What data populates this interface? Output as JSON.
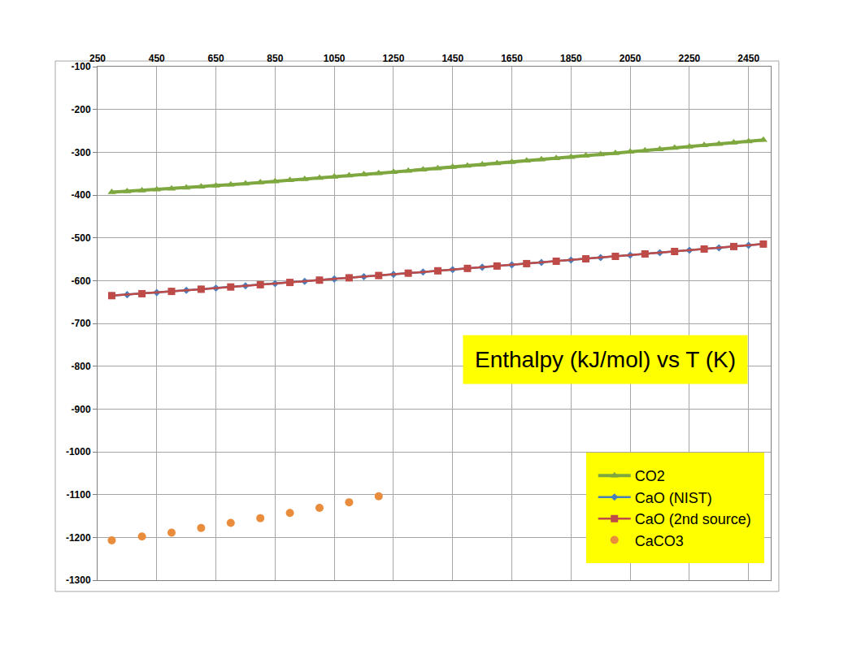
{
  "chart_data": {
    "type": "scatter",
    "title": "Enthalpy (kJ/mol) vs T (K)",
    "xlim": [
      250,
      2525
    ],
    "xticks": [
      250,
      450,
      650,
      850,
      1050,
      1250,
      1450,
      1650,
      1850,
      2050,
      2250,
      2450
    ],
    "ylim": [
      -1300,
      -100
    ],
    "yticks": [
      -1300,
      -1200,
      -1100,
      -1000,
      -900,
      -800,
      -700,
      -600,
      -500,
      -400,
      -300,
      -200,
      -100
    ],
    "grid": true,
    "legend": "lower right",
    "series": [
      {
        "name": "CO2",
        "color": "#7ea83f",
        "marker": "triangle-up",
        "line_style": "solid",
        "x": [
          298,
          350,
          400,
          450,
          500,
          550,
          600,
          650,
          700,
          750,
          800,
          850,
          900,
          950,
          1000,
          1050,
          1100,
          1150,
          1200,
          1250,
          1300,
          1350,
          1400,
          1450,
          1500,
          1550,
          1600,
          1650,
          1700,
          1750,
          1800,
          1850,
          1900,
          1950,
          2000,
          2050,
          2100,
          2150,
          2200,
          2250,
          2300,
          2350,
          2400,
          2450,
          2500
        ],
        "values": [
          -393.5,
          -391.4,
          -389.5,
          -387.4,
          -385.2,
          -382.9,
          -380.6,
          -378.2,
          -375.7,
          -373.2,
          -370.7,
          -368.1,
          -365.5,
          -362.8,
          -360.1,
          -357.4,
          -354.6,
          -351.8,
          -349.0,
          -346.2,
          -343.4,
          -340.5,
          -337.6,
          -334.7,
          -331.8,
          -328.9,
          -325.9,
          -322.9,
          -320.0,
          -317.0,
          -314.1,
          -311.1,
          -308.1,
          -305.1,
          -302.1,
          -299.0,
          -296.0,
          -293.0,
          -289.9,
          -286.9,
          -283.8,
          -280.7,
          -277.7,
          -274.6,
          -271.5
        ]
      },
      {
        "name": "CaO (NIST)",
        "color": "#4a7ebb",
        "marker": "diamond",
        "line_style": "solid",
        "x": [
          298,
          350,
          400,
          450,
          500,
          550,
          600,
          650,
          700,
          750,
          800,
          850,
          900,
          950,
          1000,
          1050,
          1100,
          1150,
          1200,
          1250,
          1300,
          1350,
          1400,
          1450,
          1500,
          1550,
          1600,
          1650,
          1700,
          1750,
          1800,
          1850,
          1900,
          1950,
          2000,
          2050,
          2100,
          2150,
          2200,
          2250,
          2300,
          2350,
          2400,
          2450,
          2500
        ],
        "values": [
          -635.1,
          -632.9,
          -630.6,
          -628.0,
          -625.2,
          -622.7,
          -620.1,
          -617.5,
          -614.9,
          -612.3,
          -609.6,
          -607.0,
          -604.3,
          -601.6,
          -598.9,
          -596.2,
          -593.5,
          -590.8,
          -588.1,
          -585.4,
          -582.6,
          -579.9,
          -577.1,
          -574.3,
          -571.5,
          -568.7,
          -565.9,
          -563.1,
          -560.3,
          -557.5,
          -554.7,
          -551.9,
          -549.1,
          -546.3,
          -543.4,
          -540.6,
          -537.7,
          -534.9,
          -532.0,
          -529.1,
          -526.2,
          -523.3,
          -520.4,
          -517.5,
          -514.6
        ]
      },
      {
        "name": "CaO (2nd source)",
        "color": "#be4b48",
        "marker": "square",
        "line_style": "solid",
        "x": [
          298,
          400,
          500,
          600,
          700,
          800,
          900,
          1000,
          1100,
          1200,
          1300,
          1400,
          1500,
          1600,
          1700,
          1800,
          1900,
          2000,
          2100,
          2200,
          2300,
          2400,
          2500
        ],
        "values": [
          -635.1,
          -630.6,
          -625.2,
          -620.1,
          -614.9,
          -609.6,
          -604.3,
          -598.9,
          -593.5,
          -588.1,
          -582.6,
          -577.1,
          -571.5,
          -565.9,
          -560.3,
          -554.7,
          -549.1,
          -543.4,
          -537.7,
          -532.0,
          -526.2,
          -520.4,
          -514.6
        ]
      },
      {
        "name": "CaCO3",
        "color": "#e98c3b",
        "marker": "circle",
        "line_style": "none",
        "x": [
          298,
          400,
          500,
          600,
          700,
          800,
          900,
          1000,
          1100,
          1200
        ],
        "values": [
          -1207,
          -1198,
          -1189,
          -1178,
          -1166,
          -1155,
          -1143,
          -1131,
          -1118,
          -1104
        ]
      }
    ]
  }
}
